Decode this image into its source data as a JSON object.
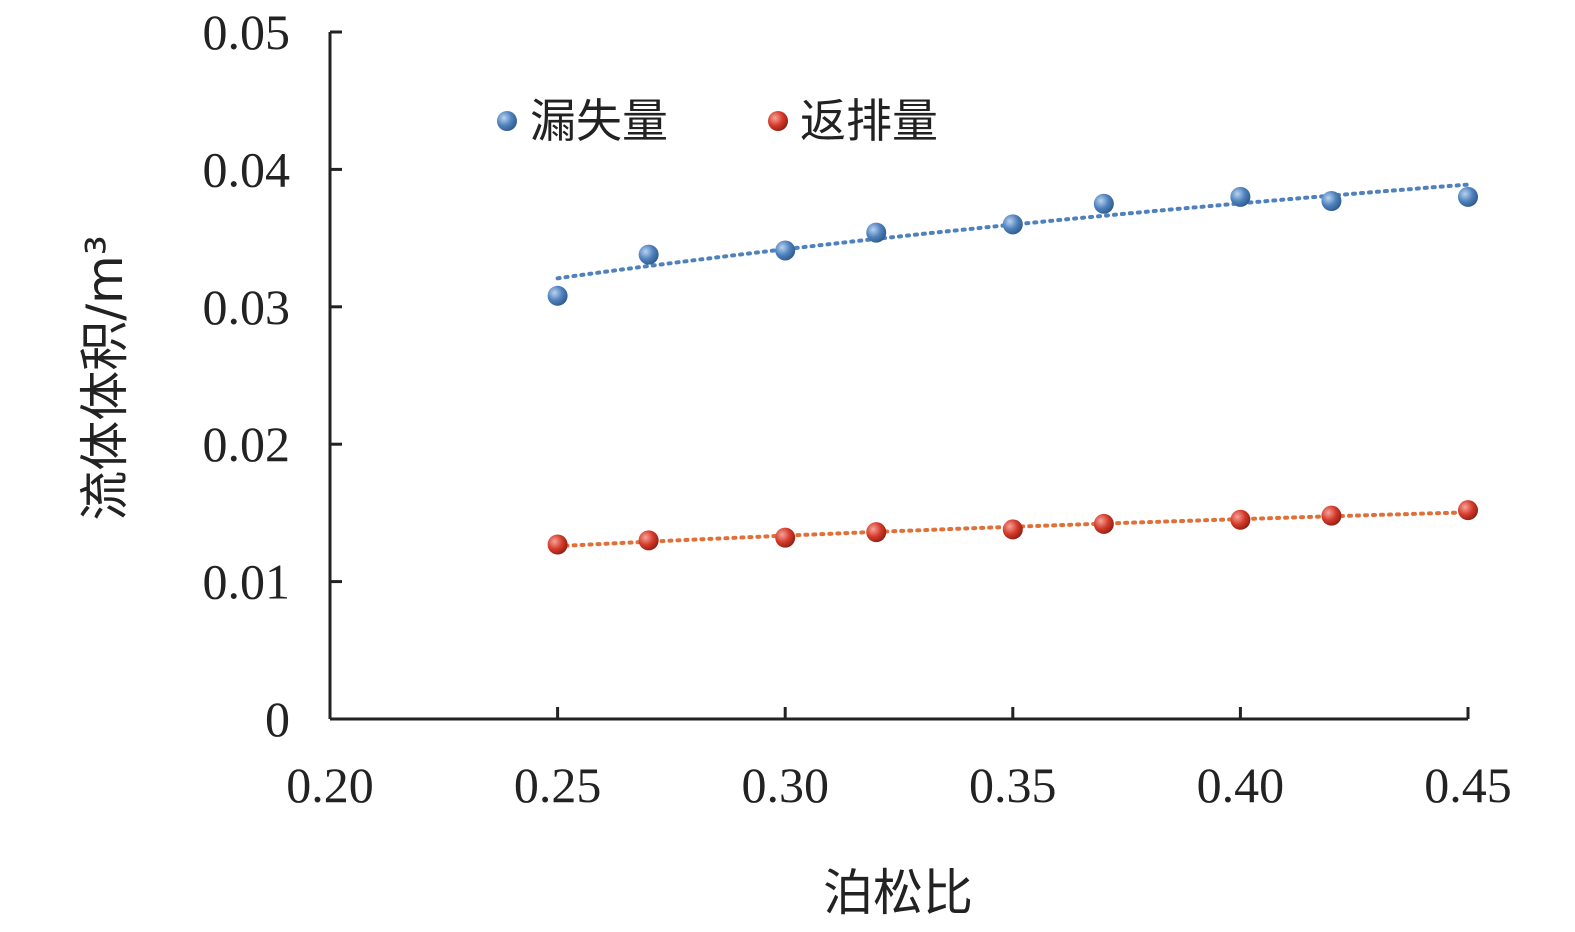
{
  "chart_data": {
    "type": "scatter",
    "xlabel": "泊松比",
    "ylabel": "流体体积/m³",
    "xlim": [
      0.2,
      0.45
    ],
    "ylim": [
      0,
      0.05
    ],
    "x_ticks": [
      "0.20",
      "0.25",
      "0.30",
      "0.35",
      "0.40",
      "0.45"
    ],
    "y_ticks": [
      "0",
      "0.01",
      "0.02",
      "0.03",
      "0.04",
      "0.05"
    ],
    "grid": false,
    "legend_position": "top",
    "series": [
      {
        "name": "漏失量",
        "color": "#4f81bd",
        "x": [
          0.25,
          0.27,
          0.3,
          0.32,
          0.35,
          0.37,
          0.4,
          0.42,
          0.45
        ],
        "y": [
          0.0308,
          0.0338,
          0.0341,
          0.0354,
          0.036,
          0.0375,
          0.038,
          0.0377,
          0.038
        ],
        "trendline": "dotted"
      },
      {
        "name": "返排量",
        "color": "#c0392b",
        "x": [
          0.25,
          0.27,
          0.3,
          0.32,
          0.35,
          0.37,
          0.4,
          0.42,
          0.45
        ],
        "y": [
          0.0127,
          0.013,
          0.0132,
          0.0136,
          0.0138,
          0.0142,
          0.0145,
          0.0148,
          0.0152
        ],
        "trendline": "dotted"
      }
    ]
  }
}
